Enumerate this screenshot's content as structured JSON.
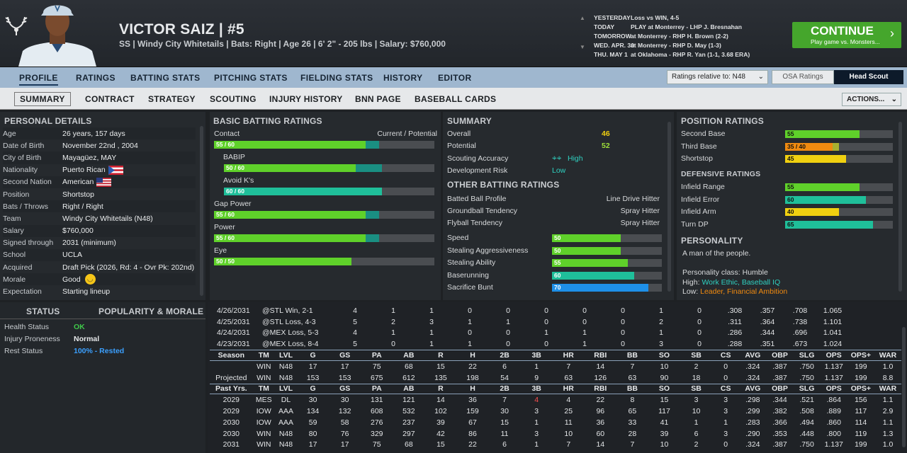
{
  "player": {
    "name": "VICTOR SAIZ",
    "number": "#5",
    "name_line": "VICTOR SAIZ  |  #5",
    "sub_line": "SS | Windy City Whitetails  |  Bats: Right  |  Age 26  |  6' 2\" - 205 lbs  |  Salary: $760,000"
  },
  "schedule": [
    {
      "day": "YESTERDAY",
      "desc": "Loss vs WIN, 4-5"
    },
    {
      "day": "TODAY",
      "desc": "PLAY at Monterrey - LHP J. Bresnahan"
    },
    {
      "day": "TOMORROW",
      "desc": "at Monterrey - RHP H. Brown (2-2)"
    },
    {
      "day": "WED. APR. 30",
      "desc": "at Monterrey - RHP D. May (1-3)"
    },
    {
      "day": "THU. MAY 1",
      "desc": "at Oklahoma - RHP R. Yan (1-1, 3.68 ERA)"
    }
  ],
  "continue": {
    "label": "CONTINUE",
    "sub": "Play game vs. Monsters..."
  },
  "tabs_top": [
    "PROFILE",
    "RATINGS",
    "BATTING STATS",
    "PITCHING STATS",
    "FIELDING STATS",
    "HISTORY",
    "EDITOR"
  ],
  "tabs_sub": [
    "SUMMARY",
    "CONTRACT",
    "STRATEGY",
    "SCOUTING",
    "INJURY HISTORY",
    "BNN PAGE",
    "BASEBALL CARDS"
  ],
  "ratings_relative": "Ratings relative to: N48",
  "osa_ratings": "OSA Ratings",
  "head_scout": "Head Scout",
  "actions": "ACTIONS...",
  "personal": {
    "title": "PERSONAL DETAILS",
    "rows": [
      {
        "k": "Age",
        "v": "26 years, 157 days"
      },
      {
        "k": "Date of Birth",
        "v": "November 22nd , 2004"
      },
      {
        "k": "City of Birth",
        "v": "Mayagüez, MAY"
      },
      {
        "k": "Nationality",
        "v": "Puerto Rican"
      },
      {
        "k": "Second Nation",
        "v": "American"
      },
      {
        "k": "Position",
        "v": "Shortstop"
      },
      {
        "k": "Bats / Throws",
        "v": "Right / Right"
      },
      {
        "k": "Team",
        "v": "Windy City Whitetails (N48)"
      },
      {
        "k": "Salary",
        "v": "$760,000"
      },
      {
        "k": "Signed through",
        "v": "2031 (minimum)"
      },
      {
        "k": "School",
        "v": "UCLA"
      },
      {
        "k": "Acquired",
        "v": "Draft Pick (2026, Rd: 4 - Ovr Pk: 202nd)"
      },
      {
        "k": "Morale",
        "v": "Good"
      },
      {
        "k": "Expectation",
        "v": "Starting lineup"
      }
    ]
  },
  "status": {
    "title": "STATUS",
    "pop_title": "POPULARITY & MORALE",
    "rows": [
      {
        "k": "Health Status",
        "v": "OK",
        "color": "#3fc84a"
      },
      {
        "k": "Injury Proneness",
        "v": "Normal",
        "color": "#e6e8ea"
      },
      {
        "k": "Rest Status",
        "v": "100% - Rested",
        "color": "#3ba0ff"
      }
    ]
  },
  "batting": {
    "title": "BASIC BATTING RATINGS",
    "col": "Current / Potential",
    "rows": [
      {
        "name": "Contact",
        "label": "55 / 60",
        "cur": 55,
        "pot": 60,
        "indent": false
      },
      {
        "name": "BABIP",
        "label": "50 / 60",
        "cur": 50,
        "pot": 60,
        "indent": true
      },
      {
        "name": "Avoid K's",
        "label": "60 / 60",
        "cur": 60,
        "pot": 60,
        "indent": true
      },
      {
        "name": "Gap Power",
        "label": "55 / 60",
        "cur": 55,
        "pot": 60,
        "indent": false
      },
      {
        "name": "Power",
        "label": "55 / 60",
        "cur": 55,
        "pot": 60,
        "indent": false
      },
      {
        "name": "Eye",
        "label": "50 / 50",
        "cur": 50,
        "pot": 50,
        "indent": false
      }
    ]
  },
  "summary": {
    "title": "SUMMARY",
    "overall_k": "Overall",
    "overall": "46",
    "potential_k": "Potential",
    "potential": "52",
    "scout_k": "Scouting Accuracy",
    "scout": "High",
    "risk_k": "Development Risk",
    "risk": "Low"
  },
  "other": {
    "title": "OTHER BATTING RATINGS",
    "rows": [
      {
        "k": "Batted Ball Profile",
        "v": "Line Drive Hitter"
      },
      {
        "k": "Groundball Tendency",
        "v": "Spray Hitter"
      },
      {
        "k": "Flyball Tendency",
        "v": "Spray Hitter"
      }
    ],
    "bars": [
      {
        "k": "Speed",
        "v": 50,
        "color": "#5fd12a"
      },
      {
        "k": "Stealing Aggressiveness",
        "v": 50,
        "color": "#5fd12a"
      },
      {
        "k": "Stealing Ability",
        "v": 55,
        "color": "#5fd12a"
      },
      {
        "k": "Baserunning",
        "v": 60,
        "color": "#1fbf9a"
      },
      {
        "k": "Sacrifice Bunt",
        "v": 70,
        "color": "#1e90e8"
      }
    ]
  },
  "position": {
    "title": "POSITION RATINGS",
    "rows": [
      {
        "k": "Second Base",
        "label": "55",
        "cur": 55,
        "pot": 55,
        "color": "#5fd12a"
      },
      {
        "k": "Third Base",
        "label": "35 / 40",
        "cur": 35,
        "pot": 40,
        "color": "#f08a10"
      },
      {
        "k": "Shortstop",
        "label": "45",
        "cur": 45,
        "pot": 45,
        "color": "#f0d010"
      }
    ],
    "def_title": "DEFENSIVE RATINGS",
    "def": [
      {
        "k": "Infield Range",
        "label": "55",
        "v": 55,
        "color": "#5fd12a"
      },
      {
        "k": "Infield Error",
        "label": "60",
        "v": 60,
        "color": "#1fbf9a"
      },
      {
        "k": "Infield Arm",
        "label": "40",
        "v": 40,
        "color": "#f0d010"
      },
      {
        "k": "Turn DP",
        "label": "65",
        "v": 65,
        "color": "#1fbf9a"
      }
    ]
  },
  "personality": {
    "title": "PERSONALITY",
    "desc": "A man of the people.",
    "class": "Personality class: Humble",
    "high_k": "High:",
    "high": "Work Ethic, Baseball IQ",
    "low_k": "Low:",
    "low": "Leader, Financial Ambition"
  },
  "stats": {
    "cols": [
      "TM",
      "LVL",
      "G",
      "GS",
      "PA",
      "AB",
      "R",
      "H",
      "2B",
      "3B",
      "HR",
      "RBI",
      "BB",
      "SO",
      "SB",
      "CS",
      "AVG",
      "OBP",
      "SLG",
      "OPS",
      "OPS+",
      "WAR"
    ],
    "games": [
      [
        "4/26/2031",
        "@STL  Win, 2-1",
        "4",
        "1",
        "1",
        "0",
        "0",
        "0",
        "0",
        "0",
        "1",
        "0",
        ".308",
        ".357",
        ".708",
        "1.065"
      ],
      [
        "4/25/2031",
        "@STL  Loss, 4-3",
        "5",
        "2",
        "3",
        "1",
        "1",
        "0",
        "0",
        "0",
        "2",
        "0",
        ".311",
        ".364",
        ".738",
        "1.101"
      ],
      [
        "4/24/2031",
        "@MEX Loss, 5-3",
        "4",
        "1",
        "1",
        "0",
        "0",
        "1",
        "1",
        "0",
        "1",
        "0",
        ".286",
        ".344",
        ".696",
        "1.041"
      ],
      [
        "4/23/2031",
        "@MEX Loss, 8-4",
        "5",
        "0",
        "1",
        "1",
        "0",
        "0",
        "1",
        "0",
        "3",
        "0",
        ".288",
        ".351",
        ".673",
        "1.024"
      ]
    ],
    "season_label": "Season",
    "season": [
      [
        "",
        "WIN",
        "N48",
        "17",
        "17",
        "75",
        "68",
        "15",
        "22",
        "6",
        "1",
        "7",
        "14",
        "7",
        "10",
        "2",
        "0",
        ".324",
        ".387",
        ".750",
        "1.137",
        "199",
        "1.0"
      ],
      [
        "Projected",
        "WIN",
        "N48",
        "153",
        "153",
        "675",
        "612",
        "135",
        "198",
        "54",
        "9",
        "63",
        "126",
        "63",
        "90",
        "18",
        "0",
        ".324",
        ".387",
        ".750",
        "1.137",
        "199",
        "8.8"
      ]
    ],
    "past_label": "Past Yrs.",
    "past": [
      [
        "2029",
        "MES",
        "DL",
        "30",
        "30",
        "131",
        "121",
        "14",
        "36",
        "7",
        "4",
        "4",
        "22",
        "8",
        "15",
        "3",
        "3",
        ".298",
        ".344",
        ".521",
        ".864",
        "156",
        "1.1"
      ],
      [
        "2029",
        "IOW",
        "AAA",
        "134",
        "132",
        "608",
        "532",
        "102",
        "159",
        "30",
        "3",
        "25",
        "96",
        "65",
        "117",
        "10",
        "3",
        ".299",
        ".382",
        ".508",
        ".889",
        "117",
        "2.9"
      ],
      [
        "2030",
        "IOW",
        "AAA",
        "59",
        "58",
        "276",
        "237",
        "39",
        "67",
        "15",
        "1",
        "11",
        "36",
        "33",
        "41",
        "1",
        "1",
        ".283",
        ".366",
        ".494",
        ".860",
        "114",
        "1.1"
      ],
      [
        "2030",
        "WIN",
        "N48",
        "80",
        "76",
        "329",
        "297",
        "42",
        "86",
        "11",
        "3",
        "10",
        "60",
        "28",
        "39",
        "6",
        "3",
        ".290",
        ".353",
        ".448",
        ".800",
        "119",
        "1.3"
      ],
      [
        "2031",
        "WIN",
        "N48",
        "17",
        "17",
        "75",
        "68",
        "15",
        "22",
        "6",
        "1",
        "7",
        "14",
        "7",
        "10",
        "2",
        "0",
        ".324",
        ".387",
        ".750",
        "1.137",
        "199",
        "1.0"
      ]
    ]
  }
}
